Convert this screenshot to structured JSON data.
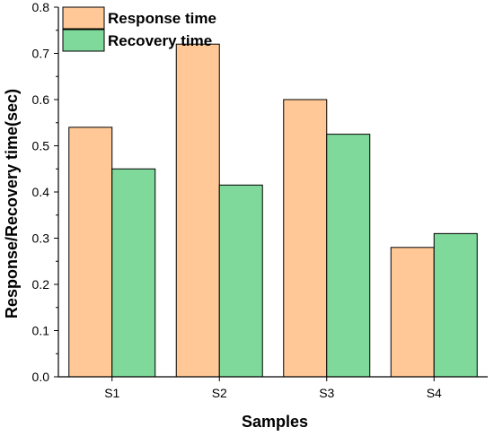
{
  "chart_data": {
    "type": "bar",
    "title": "",
    "xlabel": "Samples",
    "ylabel": "Response/Recovery time(sec)",
    "categories": [
      "S1",
      "S2",
      "S3",
      "S4"
    ],
    "series": [
      {
        "name": "Response time",
        "values": [
          0.54,
          0.72,
          0.6,
          0.28
        ],
        "color": "#FFC896"
      },
      {
        "name": "Recovery time",
        "values": [
          0.45,
          0.415,
          0.525,
          0.31
        ],
        "color": "#7FD99A"
      }
    ],
    "ylim": [
      0,
      0.8
    ],
    "yticks": [
      "0.0",
      "0.1",
      "0.2",
      "0.3",
      "0.4",
      "0.5",
      "0.6",
      "0.7",
      "0.8"
    ],
    "grid": false,
    "legend_position": "top-left"
  }
}
